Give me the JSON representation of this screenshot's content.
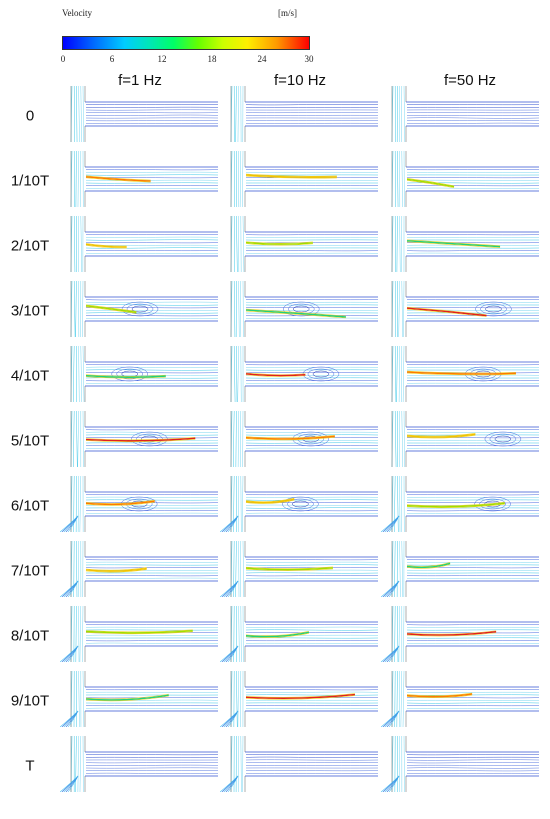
{
  "legend": {
    "title": "Velocity",
    "unit": "[m/s]",
    "ticks": [
      "0",
      "6",
      "12",
      "18",
      "24",
      "30"
    ],
    "range": [
      0,
      30
    ],
    "colormap": [
      "#0000ff",
      "#00ccff",
      "#00ff66",
      "#ccff00",
      "#ffee00",
      "#ff0000"
    ]
  },
  "columns": [
    "f=1 Hz",
    "f=10 Hz",
    "f=50 Hz"
  ],
  "rows": [
    "0",
    "1/10T",
    "2/10T",
    "3/10T",
    "4/10T",
    "5/10T",
    "6/10T",
    "7/10T",
    "8/10T",
    "9/10T",
    "T"
  ]
}
